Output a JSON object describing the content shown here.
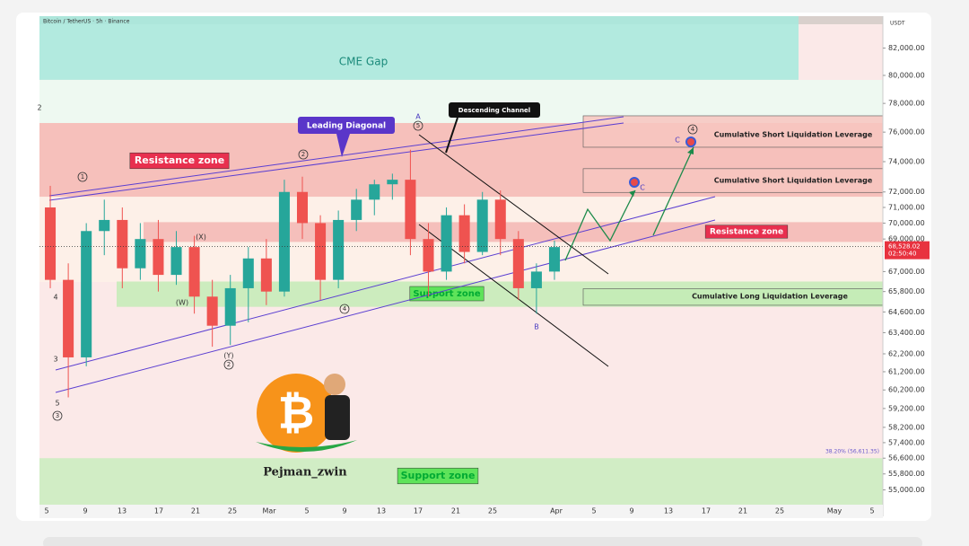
{
  "chart_data": {
    "type": "candlestick",
    "title": "Bitcoin / TetherUS · 5h · Binance",
    "currency_label": "USDT",
    "log_scale": true,
    "ylim": [
      53700,
      84400
    ],
    "yticks": [
      {
        "value": 82000,
        "label": "82,000.00"
      },
      {
        "value": 80000,
        "label": "80,000.00"
      },
      {
        "value": 78000,
        "label": "78,000.00"
      },
      {
        "value": 76000,
        "label": "76,000.00"
      },
      {
        "value": 74000,
        "label": "74,000.00"
      },
      {
        "value": 72000,
        "label": "72,000.00"
      },
      {
        "value": 71000,
        "label": "71,000.00"
      },
      {
        "value": 70000,
        "label": "70,000.00"
      },
      {
        "value": 69000,
        "label": "69,000.00"
      },
      {
        "value": 67000,
        "label": "67,000.00"
      },
      {
        "value": 65800,
        "label": "65,800.00"
      },
      {
        "value": 64600,
        "label": "64,600.00"
      },
      {
        "value": 63400,
        "label": "63,400.00"
      },
      {
        "value": 62200,
        "label": "62,200.00"
      },
      {
        "value": 61200,
        "label": "61,200.00"
      },
      {
        "value": 60200,
        "label": "60,200.00"
      },
      {
        "value": 59200,
        "label": "59,200.00"
      },
      {
        "value": 58200,
        "label": "58,200.00"
      },
      {
        "value": 57400,
        "label": "57,400.00"
      },
      {
        "value": 56600,
        "label": "56,600.00"
      },
      {
        "value": 55800,
        "label": "55,800.00"
      },
      {
        "value": 55000,
        "label": "55,000.00"
      }
    ],
    "categories": [
      "5",
      "9",
      "13",
      "17",
      "21",
      "25",
      "Mar",
      "5",
      "9",
      "13",
      "17",
      "21",
      "25",
      "Apr",
      "5",
      "9",
      "13",
      "17",
      "21",
      "25",
      "May",
      "5"
    ],
    "up_color": "#26a69a",
    "down_color": "#ef5350",
    "candles": [
      [
        71000,
        72400,
        66000,
        66500
      ],
      [
        66500,
        67500,
        59800,
        62000
      ],
      [
        62000,
        70000,
        61500,
        69500
      ],
      [
        69500,
        71500,
        68000,
        70200
      ],
      [
        70200,
        71000,
        66000,
        67200
      ],
      [
        67200,
        70000,
        66500,
        69000
      ],
      [
        69000,
        70200,
        65800,
        66800
      ],
      [
        66800,
        69500,
        66200,
        68500
      ],
      [
        68500,
        69200,
        64500,
        65500
      ],
      [
        65500,
        66500,
        62600,
        63800
      ],
      [
        63800,
        66800,
        62700,
        66000
      ],
      [
        66000,
        68500,
        64000,
        67800
      ],
      [
        67800,
        69000,
        65000,
        65800
      ],
      [
        65800,
        72800,
        65500,
        72000
      ],
      [
        72000,
        73000,
        69000,
        70000
      ],
      [
        70000,
        70500,
        65300,
        66500
      ],
      [
        66500,
        70800,
        66000,
        70200
      ],
      [
        70200,
        72200,
        69500,
        71500
      ],
      [
        71500,
        72800,
        70500,
        72500
      ],
      [
        72500,
        73200,
        71500,
        72800
      ],
      [
        72800,
        74800,
        68000,
        69000
      ],
      [
        69000,
        70000,
        65500,
        67000
      ],
      [
        67000,
        71000,
        66500,
        70500
      ],
      [
        70500,
        71200,
        67500,
        68200
      ],
      [
        68200,
        72000,
        68000,
        71500
      ],
      [
        71500,
        72100,
        68000,
        69000
      ],
      [
        69000,
        69500,
        65300,
        66000
      ],
      [
        66000,
        67500,
        64500,
        67000
      ],
      [
        67000,
        68900,
        66500,
        68500
      ]
    ],
    "last_price": {
      "value": 68528.02,
      "label": "68,528.02"
    },
    "timer": "02:50:40",
    "zones": [
      {
        "label": "CME Gap",
        "from": 79680,
        "to": 84400,
        "color": "#a5eadd"
      },
      {
        "label": "Resistance zone",
        "from": 71690,
        "to": 76630,
        "color": "#f5b9b3"
      },
      {
        "label": "Resistance zone",
        "from": 68820,
        "to": 70060,
        "color": "#f3b6b3"
      },
      {
        "label": "Support zone",
        "from": 64900,
        "to": 66400,
        "color": "#c3ecb6"
      },
      {
        "label": "Support zone",
        "from": 54270,
        "to": 56600,
        "color": "#c9edbe"
      },
      {
        "label": "Cumulative Short Liquidation Leverage",
        "from": 74970,
        "to": 77130,
        "color": "#f7c6c0"
      },
      {
        "label": "Cumulative Short Liquidation Leverage",
        "from": 71970,
        "to": 73530,
        "color": "#f7c6c0"
      },
      {
        "label": "Cumulative Long Liquidation Leverage",
        "from": 64990,
        "to": 65970,
        "color": "#c3ecb6"
      }
    ],
    "pattern_labels": [
      "Leading Diagonal",
      "Descending Channel"
    ],
    "wave_labels": [
      "1",
      "2",
      "3",
      "4",
      "5",
      "A",
      "B",
      "C",
      "4",
      "C",
      "(W)",
      "(X)",
      "(Y)",
      "2",
      "5",
      "3",
      "4",
      "2"
    ],
    "fib_label": "38.20% (56,611.35)",
    "logo": "₿",
    "watermark": "Pejman_zwin"
  }
}
